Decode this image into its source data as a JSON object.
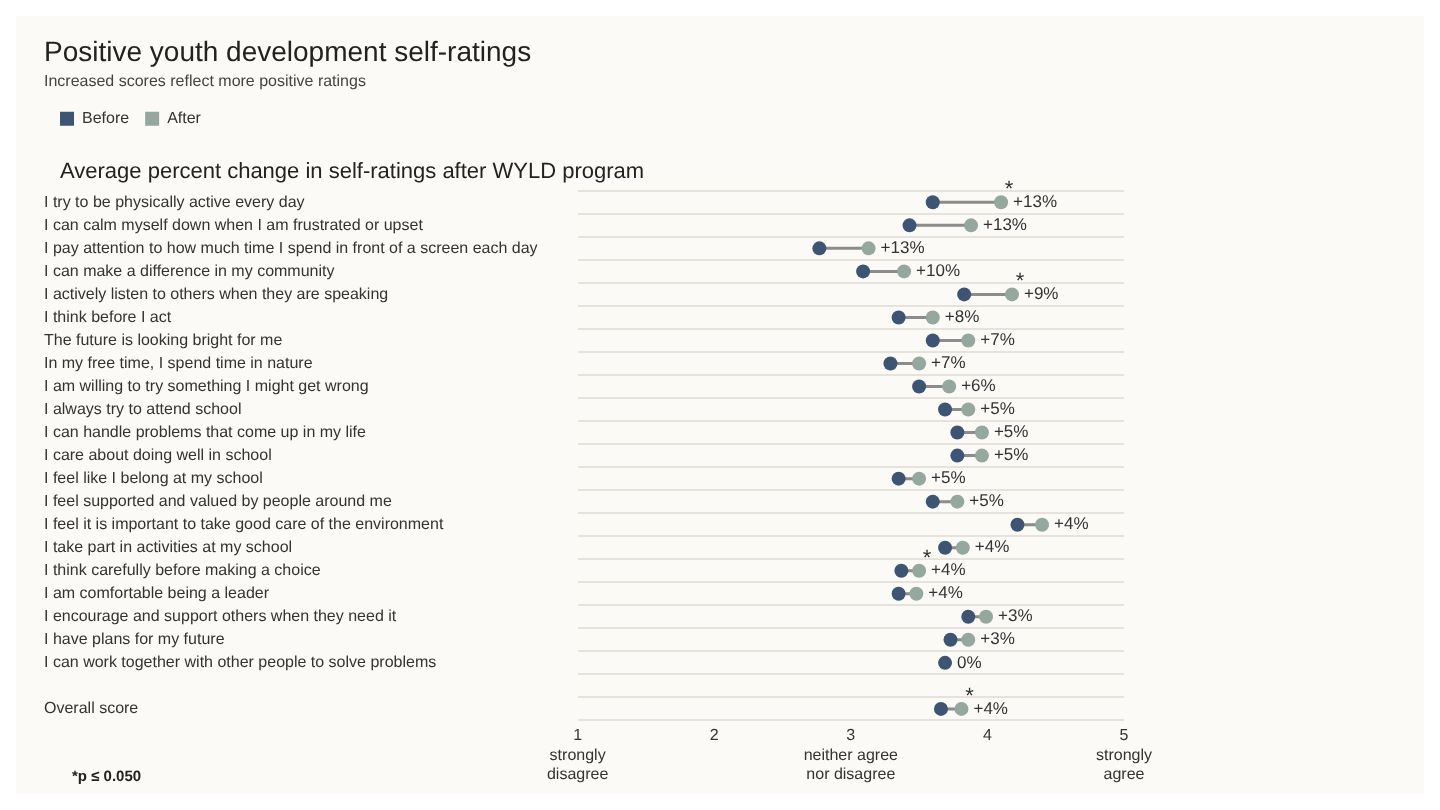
{
  "chart_data": {
    "type": "scatter",
    "title": "Positive youth development self-ratings",
    "subtitle": "Increased scores reflect more positive ratings",
    "categories": [
      "I try to be physically active every day",
      "I can calm myself down when I am frustrated or upset",
      "I pay attention to how much time I spend in front of a screen each day",
      "I can make a difference in my community",
      "I actively listen to others when they are speaking",
      "I think before I act",
      "The future is looking bright for me",
      "In my free time, I spend time in nature",
      "I am willing to try something I might get wrong",
      "I always try to attend school",
      "I can handle problems that come up in my life",
      "I care about doing well in school",
      "I feel like I belong at my school",
      "I feel supported and valued by people around me",
      "I feel it is important to take good care of the environment",
      "I take part in activities at my school",
      "I think carefully before making a choice",
      "I am comfortable being a leader",
      "I encourage and support others when they need it",
      "I have plans for my future",
      "I can work together with other people to solve problems",
      null,
      "Overall score"
    ],
    "series": [
      {
        "name": "Before",
        "color": "#3d5573",
        "values": [
          3.6,
          3.43,
          2.77,
          3.09,
          3.83,
          3.35,
          3.6,
          3.29,
          3.5,
          3.69,
          3.78,
          3.78,
          3.35,
          3.6,
          4.22,
          3.69,
          3.37,
          3.35,
          3.86,
          3.73,
          3.69,
          null,
          3.66
        ]
      },
      {
        "name": "After",
        "color": "#95a89f",
        "values": [
          4.1,
          3.88,
          3.13,
          3.39,
          4.18,
          3.6,
          3.86,
          3.5,
          3.72,
          3.86,
          3.96,
          3.96,
          3.5,
          3.78,
          4.4,
          3.82,
          3.5,
          3.48,
          3.99,
          3.86,
          null,
          null,
          3.81
        ]
      }
    ],
    "xlim": [
      1,
      5
    ],
    "xticks": [
      {
        "value": 1,
        "label": "1\nstrongly\ndisagree"
      },
      2,
      {
        "value": 3,
        "label": "3\nneither agree\nnor disagree"
      },
      4,
      {
        "value": 5,
        "label": "5\nstrongly\nagree"
      }
    ],
    "orientation": "horizontal",
    "marker": "circle",
    "grid": "y",
    "legend": "top left",
    "annotations": [
      "Average percent change in self-ratings after WYLD program",
      "*p ≤ 0.050",
      {
        "text": "+13%",
        "x": 4.1,
        "y": "I try to be physically active every day"
      },
      {
        "text": "+13%",
        "x": 3.88,
        "y": "I can calm myself down when I am frustrated or upset"
      },
      {
        "text": "+13%",
        "x": 3.13,
        "y": "I pay attention to how much time I spend in front of a screen each day"
      },
      {
        "text": "+10%",
        "x": 3.39,
        "y": "I can make a difference in my community"
      },
      {
        "text": "+9%",
        "x": 4.18,
        "y": "I actively listen to others when they are speaking"
      },
      {
        "text": "+8%",
        "x": 3.6,
        "y": "I think before I act"
      },
      {
        "text": "+7%",
        "x": 3.86,
        "y": "The future is looking bright for me"
      },
      {
        "text": "+7%",
        "x": 3.5,
        "y": "In my free time, I spend time in nature"
      },
      {
        "text": "+6%",
        "x": 3.72,
        "y": "I am willing to try something I might get wrong"
      },
      {
        "text": "+5%",
        "x": 3.86,
        "y": "I always try to attend school"
      },
      {
        "text": "+5%",
        "x": 3.96,
        "y": "I can handle problems that come up in my life"
      },
      {
        "text": "+5%",
        "x": 3.96,
        "y": "I care about doing well in school"
      },
      {
        "text": "+5%",
        "x": 3.5,
        "y": "I feel like I belong at my school"
      },
      {
        "text": "+5%",
        "x": 3.78,
        "y": "I feel supported and valued by people around me"
      },
      {
        "text": "+4%",
        "x": 4.4,
        "y": "I feel it is important to take good care of the environment"
      },
      {
        "text": "+4%",
        "x": 3.82,
        "y": "I take part in activities at my school"
      },
      {
        "text": "+4%",
        "x": 3.5,
        "y": "I think carefully before making a choice"
      },
      {
        "text": "+4%",
        "x": 3.48,
        "y": "I am comfortable being a leader"
      },
      {
        "text": "+3%",
        "x": 3.99,
        "y": "I encourage and support others when they need it"
      },
      {
        "text": "+3%",
        "x": 3.86,
        "y": "I have plans for my future"
      },
      {
        "text": "0%",
        "x": 3.69,
        "y": "I can work together with other people to solve problems"
      },
      {
        "text": "+4%",
        "x": 3.81,
        "y": "Overall score"
      },
      {
        "text": "*",
        "x": 4.1,
        "y": "I try to be physically active every day"
      },
      {
        "text": "*",
        "x": 4.18,
        "y": "I actively listen to others when they are speaking"
      },
      {
        "text": "*",
        "x": 3.5,
        "y": "I think carefully before making a choice"
      },
      {
        "text": "*",
        "x": 3.81,
        "y": "Overall score"
      }
    ]
  }
}
